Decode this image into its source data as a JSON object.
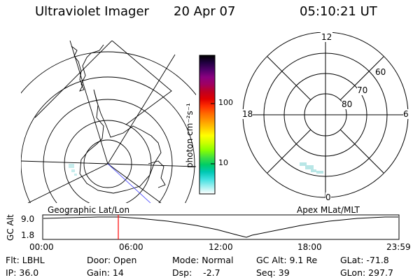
{
  "header": {
    "title": "Ultraviolet Imager",
    "date": "20 Apr 07",
    "time": "05:10:21 UT"
  },
  "colorbar": {
    "unit_label": "photon cm⁻²s⁻¹",
    "ticks": [
      "100",
      "10"
    ],
    "colors": [
      "#000000",
      "#200040",
      "#50006a",
      "#8a0080",
      "#a00060",
      "#c00020",
      "#e00000",
      "#ff3000",
      "#ff6a00",
      "#ff9a00",
      "#ffcc00",
      "#ffff00",
      "#ccff00",
      "#88ff00",
      "#40e040",
      "#00cc66",
      "#00c8b4",
      "#40e0e0",
      "#a0f0f0",
      "#ffffff"
    ]
  },
  "polar_plot": {
    "mlt_labels": [
      "12",
      "18",
      "6",
      "0"
    ],
    "mlat_labels": [
      "60",
      "70",
      "80"
    ]
  },
  "timeline": {
    "left_title": "Geographic Lat/Lon",
    "right_title": "Apex  MLat/MLT",
    "yaxis_label": "GC Alt",
    "ytick_top": "9.0",
    "ytick_bottom": "1.8",
    "xticks": [
      "00:00",
      "06:00",
      "12:00",
      "18:00",
      "23:59"
    ],
    "marker_color": "#ff0000"
  },
  "footer": {
    "filter": "Flt: LBHL",
    "ip": "IP: 36.0",
    "door": "Door: Open",
    "gain": "Gain: 14",
    "mode": "Mode: Normal",
    "dsp": "Dsp:    -2.7",
    "gcalt": "GC Alt: 9.1 Re",
    "seq": "Seq: 39",
    "glat": "GLat: -71.8",
    "glon": "GLon: 297.7"
  }
}
